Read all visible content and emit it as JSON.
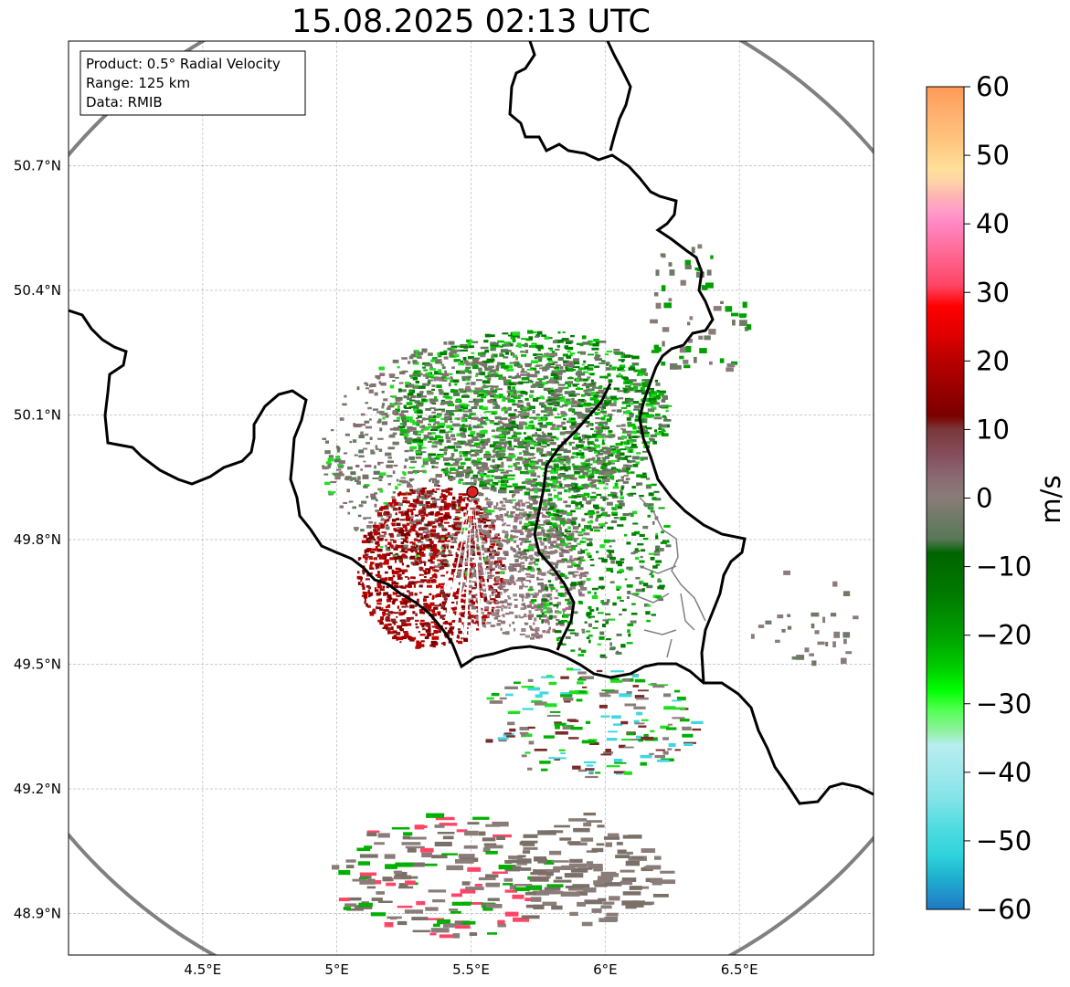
{
  "title": "15.08.2025 02:13 UTC",
  "info_box": {
    "product": "Product: 0.5° Radial Velocity",
    "range": "Range: 125 km",
    "data": "Data: RMIB"
  },
  "map": {
    "lon_range": [
      4.0,
      7.0
    ],
    "lat_range": [
      48.8,
      51.0
    ],
    "x_ticks": [
      {
        "value": 4.5,
        "label": "4.5°E"
      },
      {
        "value": 5.0,
        "label": "5°E"
      },
      {
        "value": 5.5,
        "label": "5.5°E"
      },
      {
        "value": 6.0,
        "label": "6°E"
      },
      {
        "value": 6.5,
        "label": "6.5°E"
      }
    ],
    "y_ticks": [
      {
        "value": 48.9,
        "label": "48.9°N"
      },
      {
        "value": 49.2,
        "label": "49.2°N"
      },
      {
        "value": 49.5,
        "label": "49.5°N"
      },
      {
        "value": 49.8,
        "label": "49.8°N"
      },
      {
        "value": 50.1,
        "label": "50.1°N"
      },
      {
        "value": 50.4,
        "label": "50.4°N"
      },
      {
        "value": 50.7,
        "label": "50.7°N"
      }
    ],
    "grid": true,
    "radar_site": {
      "lon": 5.505,
      "lat": 49.915
    },
    "range_ring_color": "#808080",
    "border_color": "#000000"
  },
  "colorbar": {
    "label": "m/s",
    "min": -60,
    "max": 60,
    "ticks": [
      {
        "value": 60,
        "label": "60"
      },
      {
        "value": 50,
        "label": "50"
      },
      {
        "value": 40,
        "label": "40"
      },
      {
        "value": 30,
        "label": "30"
      },
      {
        "value": 20,
        "label": "20"
      },
      {
        "value": 10,
        "label": "10"
      },
      {
        "value": 0,
        "label": "0"
      },
      {
        "value": -10,
        "label": "−10"
      },
      {
        "value": -20,
        "label": "−20"
      },
      {
        "value": -30,
        "label": "−30"
      },
      {
        "value": -40,
        "label": "−40"
      },
      {
        "value": -50,
        "label": "−50"
      },
      {
        "value": -60,
        "label": "−60"
      }
    ],
    "stops": [
      {
        "value": 60,
        "color": "#ff9a55"
      },
      {
        "value": 56,
        "color": "#ffb070"
      },
      {
        "value": 52,
        "color": "#ffc680"
      },
      {
        "value": 48,
        "color": "#ffe09a"
      },
      {
        "value": 46,
        "color": "#ffd2a8"
      },
      {
        "value": 44,
        "color": "#ffb3b3"
      },
      {
        "value": 42,
        "color": "#ff9ec8"
      },
      {
        "value": 40,
        "color": "#ff86c4"
      },
      {
        "value": 37,
        "color": "#ff72a0"
      },
      {
        "value": 34,
        "color": "#ff5a82"
      },
      {
        "value": 31,
        "color": "#ff4466"
      },
      {
        "value": 28,
        "color": "#ff0000"
      },
      {
        "value": 24,
        "color": "#e00000"
      },
      {
        "value": 20,
        "color": "#b80000"
      },
      {
        "value": 16,
        "color": "#9a0000"
      },
      {
        "value": 12,
        "color": "#7a0000"
      },
      {
        "value": 10,
        "color": "#7a3838"
      },
      {
        "value": 6,
        "color": "#865060"
      },
      {
        "value": 3,
        "color": "#8a6a74"
      },
      {
        "value": 0,
        "color": "#8a7c78"
      },
      {
        "value": -3,
        "color": "#6e7a66"
      },
      {
        "value": -6,
        "color": "#587858"
      },
      {
        "value": -8,
        "color": "#006400"
      },
      {
        "value": -14,
        "color": "#007a00"
      },
      {
        "value": -20,
        "color": "#00a000"
      },
      {
        "value": -25,
        "color": "#00d000"
      },
      {
        "value": -28,
        "color": "#00ff00"
      },
      {
        "value": -31,
        "color": "#55ff55"
      },
      {
        "value": -34,
        "color": "#90f0a0"
      },
      {
        "value": -36,
        "color": "#b8eef0"
      },
      {
        "value": -40,
        "color": "#a0e8ec"
      },
      {
        "value": -44,
        "color": "#80e4e8"
      },
      {
        "value": -48,
        "color": "#50dce0"
      },
      {
        "value": -52,
        "color": "#30d4dc"
      },
      {
        "value": -55,
        "color": "#20b4d0"
      },
      {
        "value": -58,
        "color": "#2090cc"
      },
      {
        "value": -60,
        "color": "#1f78c0"
      }
    ]
  }
}
